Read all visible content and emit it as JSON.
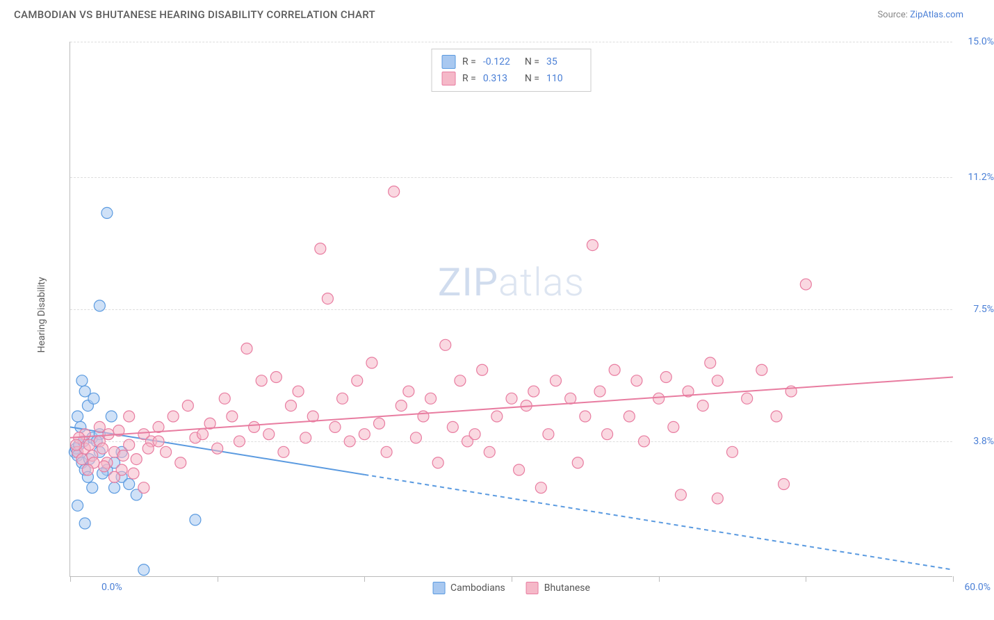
{
  "title": "CAMBODIAN VS BHUTANESE HEARING DISABILITY CORRELATION CHART",
  "source_label": "Source:",
  "source_name": "ZipAtlas.com",
  "ylabel": "Hearing Disability",
  "watermark_zip": "ZIP",
  "watermark_atlas": "atlas",
  "chart": {
    "type": "scatter",
    "xlim": [
      0,
      60
    ],
    "ylim": [
      0,
      15
    ],
    "xlabel_min": "0.0%",
    "xlabel_max": "60.0%",
    "ytick_labels": [
      "3.8%",
      "7.5%",
      "11.2%",
      "15.0%"
    ],
    "ytick_values": [
      3.8,
      7.5,
      11.2,
      15.0
    ],
    "xtick_values": [
      0,
      10,
      20,
      30,
      40,
      50,
      60
    ],
    "grid_color": "#dddddd",
    "axis_color": "#bbbbbb",
    "background_color": "#ffffff",
    "marker_radius": 8,
    "marker_opacity": 0.55,
    "line_width": 2
  },
  "series": [
    {
      "name": "Cambodians",
      "color_fill": "#a8c8f0",
      "color_stroke": "#5a9ae0",
      "r_value": "-0.122",
      "n_value": "35",
      "regression": {
        "x1": 0,
        "y1": 4.2,
        "x2": 60,
        "y2": 0.2,
        "solid_until_x": 20
      },
      "points": [
        [
          0.3,
          3.5
        ],
        [
          0.4,
          3.6
        ],
        [
          0.5,
          3.4
        ],
        [
          0.6,
          3.7
        ],
        [
          0.8,
          3.2
        ],
        [
          0.5,
          4.5
        ],
        [
          1.0,
          3.0
        ],
        [
          1.2,
          2.8
        ],
        [
          1.5,
          3.9
        ],
        [
          1.0,
          5.2
        ],
        [
          0.8,
          5.5
        ],
        [
          1.2,
          4.8
        ],
        [
          2.0,
          7.6
        ],
        [
          2.5,
          10.2
        ],
        [
          2.0,
          3.5
        ],
        [
          2.5,
          3.0
        ],
        [
          3.0,
          2.5
        ],
        [
          3.5,
          2.8
        ],
        [
          1.0,
          1.5
        ],
        [
          2.0,
          4.0
        ],
        [
          3.0,
          3.2
        ],
        [
          3.5,
          3.5
        ],
        [
          4.0,
          2.6
        ],
        [
          4.5,
          2.3
        ],
        [
          1.5,
          2.5
        ],
        [
          2.8,
          4.5
        ],
        [
          0.5,
          2.0
        ],
        [
          1.8,
          3.8
        ],
        [
          2.2,
          2.9
        ],
        [
          5.0,
          0.2
        ],
        [
          8.5,
          1.6
        ],
        [
          1.3,
          3.3
        ],
        [
          0.7,
          4.2
        ],
        [
          1.6,
          5.0
        ],
        [
          0.9,
          3.8
        ]
      ]
    },
    {
      "name": "Bhutanese",
      "color_fill": "#f5b8c8",
      "color_stroke": "#e87ca0",
      "r_value": "0.313",
      "n_value": "110",
      "regression": {
        "x1": 0,
        "y1": 3.9,
        "x2": 60,
        "y2": 5.6,
        "solid_until_x": 60
      },
      "points": [
        [
          0.5,
          3.5
        ],
        [
          1.0,
          3.6
        ],
        [
          1.5,
          3.4
        ],
        [
          2.0,
          3.8
        ],
        [
          2.5,
          3.2
        ],
        [
          3.0,
          3.5
        ],
        [
          3.5,
          3.0
        ],
        [
          4.0,
          3.7
        ],
        [
          4.5,
          3.3
        ],
        [
          5.0,
          4.0
        ],
        [
          5.5,
          3.8
        ],
        [
          6.0,
          4.2
        ],
        [
          6.5,
          3.5
        ],
        [
          7.0,
          4.5
        ],
        [
          7.5,
          3.2
        ],
        [
          8.0,
          4.8
        ],
        [
          8.5,
          3.9
        ],
        [
          9.0,
          4.0
        ],
        [
          9.5,
          4.3
        ],
        [
          10.0,
          3.6
        ],
        [
          10.5,
          5.0
        ],
        [
          11.0,
          4.5
        ],
        [
          11.5,
          3.8
        ],
        [
          12.0,
          6.4
        ],
        [
          12.5,
          4.2
        ],
        [
          13.0,
          5.5
        ],
        [
          13.5,
          4.0
        ],
        [
          14.0,
          5.6
        ],
        [
          14.5,
          3.5
        ],
        [
          15.0,
          4.8
        ],
        [
          15.5,
          5.2
        ],
        [
          16.0,
          3.9
        ],
        [
          16.5,
          4.5
        ],
        [
          17.0,
          9.2
        ],
        [
          17.5,
          7.8
        ],
        [
          18.0,
          4.2
        ],
        [
          18.5,
          5.0
        ],
        [
          19.0,
          3.8
        ],
        [
          19.5,
          5.5
        ],
        [
          20.0,
          4.0
        ],
        [
          20.5,
          6.0
        ],
        [
          21.0,
          4.3
        ],
        [
          21.5,
          3.5
        ],
        [
          22.0,
          10.8
        ],
        [
          22.5,
          4.8
        ],
        [
          23.0,
          5.2
        ],
        [
          23.5,
          3.9
        ],
        [
          24.0,
          4.5
        ],
        [
          24.5,
          5.0
        ],
        [
          25.0,
          3.2
        ],
        [
          25.5,
          6.5
        ],
        [
          26.0,
          4.2
        ],
        [
          26.5,
          5.5
        ],
        [
          27.0,
          3.8
        ],
        [
          27.5,
          4.0
        ],
        [
          28.0,
          5.8
        ],
        [
          28.5,
          3.5
        ],
        [
          29.0,
          4.5
        ],
        [
          30.0,
          5.0
        ],
        [
          30.5,
          3.0
        ],
        [
          31.0,
          4.8
        ],
        [
          31.5,
          5.2
        ],
        [
          32.0,
          2.5
        ],
        [
          32.5,
          4.0
        ],
        [
          33.0,
          5.5
        ],
        [
          34.0,
          5.0
        ],
        [
          34.5,
          3.2
        ],
        [
          35.0,
          4.5
        ],
        [
          35.5,
          9.3
        ],
        [
          36.0,
          5.2
        ],
        [
          36.5,
          4.0
        ],
        [
          37.0,
          5.8
        ],
        [
          38.0,
          4.5
        ],
        [
          38.5,
          5.5
        ],
        [
          39.0,
          3.8
        ],
        [
          40.0,
          5.0
        ],
        [
          40.5,
          5.6
        ],
        [
          41.0,
          4.2
        ],
        [
          41.5,
          2.3
        ],
        [
          42.0,
          5.2
        ],
        [
          43.0,
          4.8
        ],
        [
          43.5,
          6.0
        ],
        [
          44.0,
          5.5
        ],
        [
          45.0,
          3.5
        ],
        [
          46.0,
          5.0
        ],
        [
          47.0,
          5.8
        ],
        [
          48.0,
          4.5
        ],
        [
          48.5,
          2.6
        ],
        [
          49.0,
          5.2
        ],
        [
          50.0,
          8.2
        ],
        [
          44.0,
          2.2
        ],
        [
          1.0,
          4.0
        ],
        [
          2.0,
          4.2
        ],
        [
          3.0,
          2.8
        ],
        [
          4.0,
          4.5
        ],
        [
          5.0,
          2.5
        ],
        [
          6.0,
          3.8
        ],
        [
          0.8,
          3.3
        ],
        [
          1.3,
          3.7
        ],
        [
          2.3,
          3.1
        ],
        [
          3.3,
          4.1
        ],
        [
          4.3,
          2.9
        ],
        [
          5.3,
          3.6
        ],
        [
          0.6,
          3.9
        ],
        [
          1.6,
          3.2
        ],
        [
          2.6,
          4.0
        ],
        [
          3.6,
          3.4
        ],
        [
          1.2,
          3.0
        ],
        [
          2.2,
          3.6
        ],
        [
          0.4,
          3.7
        ]
      ]
    }
  ],
  "legend": {
    "label_a": "Cambodians",
    "label_b": "Bhutanese"
  },
  "stats_labels": {
    "r": "R =",
    "n": "N ="
  }
}
